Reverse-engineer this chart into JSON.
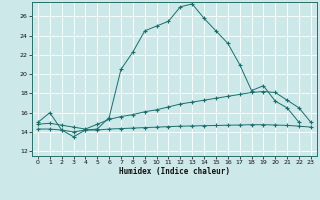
{
  "xlabel": "Humidex (Indice chaleur)",
  "bg_color": "#cce8e8",
  "grid_color": "#b0d0d0",
  "line_color": "#1a6e6e",
  "xlim": [
    -0.5,
    23.5
  ],
  "ylim": [
    11.5,
    27.5
  ],
  "xticks": [
    0,
    1,
    2,
    3,
    4,
    5,
    6,
    7,
    8,
    9,
    10,
    11,
    12,
    13,
    14,
    15,
    16,
    17,
    18,
    19,
    20,
    21,
    22,
    23
  ],
  "yticks": [
    12,
    14,
    16,
    18,
    20,
    22,
    24,
    26
  ],
  "line1_x": [
    0,
    1,
    2,
    3,
    4,
    5,
    6,
    7,
    8,
    9,
    10,
    11,
    12,
    13,
    14,
    15,
    16,
    17,
    18,
    19,
    20,
    21,
    22
  ],
  "line1_y": [
    15,
    16,
    14.2,
    13.5,
    14.2,
    14.3,
    15.5,
    20.5,
    22.3,
    24.5,
    25.0,
    25.5,
    27.0,
    27.3,
    25.8,
    24.5,
    23.2,
    21.0,
    18.3,
    18.8,
    17.2,
    16.5,
    15.0
  ],
  "line2_x": [
    0,
    1,
    2,
    3,
    4,
    5,
    6,
    7,
    8,
    9,
    10,
    11,
    12,
    13,
    14,
    15,
    16,
    17,
    18,
    19,
    20,
    21,
    22,
    23
  ],
  "line2_y": [
    14.8,
    14.9,
    14.7,
    14.5,
    14.3,
    14.8,
    15.3,
    15.6,
    15.8,
    16.1,
    16.3,
    16.6,
    16.9,
    17.1,
    17.3,
    17.5,
    17.7,
    17.9,
    18.1,
    18.2,
    18.1,
    17.3,
    16.5,
    15.0
  ],
  "line3_x": [
    0,
    1,
    2,
    3,
    4,
    5,
    6,
    7,
    8,
    9,
    10,
    11,
    12,
    13,
    14,
    15,
    16,
    17,
    18,
    19,
    20,
    21,
    22,
    23
  ],
  "line3_y": [
    14.3,
    14.3,
    14.2,
    14.0,
    14.2,
    14.2,
    14.3,
    14.35,
    14.4,
    14.45,
    14.5,
    14.55,
    14.6,
    14.62,
    14.65,
    14.67,
    14.7,
    14.72,
    14.75,
    14.75,
    14.72,
    14.68,
    14.6,
    14.5
  ]
}
